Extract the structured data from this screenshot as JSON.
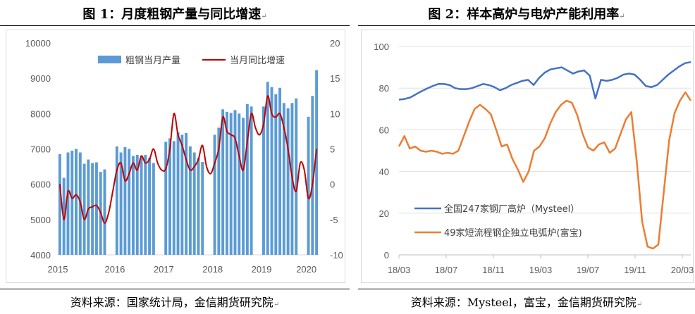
{
  "figure1": {
    "title": "图 1：月度粗钢产量与同比增速",
    "source": "资料来源：国家统计局，金信期货研究院",
    "chart_data": {
      "type": "bar",
      "ylim": [
        4000,
        10000
      ],
      "y2lim": [
        -10,
        20
      ],
      "yticks": [
        "10000",
        "9000",
        "8000",
        "7000",
        "6000",
        "5000",
        "4000"
      ],
      "y2ticks": [
        "20",
        "15",
        "10",
        "5",
        "0",
        "-5",
        "-10"
      ],
      "xticks": [
        "2015",
        "2016",
        "2017",
        "2018",
        "2019",
        "2020"
      ],
      "legend_position": "top",
      "series": [
        {
          "name": "粗钢当月产量",
          "kind": "bar",
          "color": "#5B9BD5",
          "values": [
            6850,
            6180,
            6900,
            6950,
            7000,
            6900,
            6580,
            6700,
            6600,
            6620,
            6350,
            6420,
            null,
            null,
            7070,
            6900,
            7050,
            7000,
            6800,
            6830,
            6800,
            6830,
            6750,
            6600,
            null,
            null,
            7200,
            7300,
            7220,
            7480,
            7400,
            7450,
            7070,
            6900,
            6750,
            6630,
            null,
            null,
            7400,
            7600,
            8120,
            8050,
            8020,
            8100,
            8000,
            7880,
            8270,
            8200,
            null,
            null,
            8200,
            8900,
            8750,
            8550,
            8730,
            8300,
            8150,
            8300,
            8430,
            null,
            null,
            7910,
            8500,
            9230
          ]
        },
        {
          "name": "当月同比增速",
          "kind": "line",
          "axis": "right",
          "color": "#C00000",
          "values": [
            0.0,
            -5.0,
            -1.0,
            -2.0,
            -1.5,
            -2.5,
            -5.0,
            -3.5,
            -3.2,
            -3.0,
            -4.0,
            -5.5,
            -4.0,
            -1.0,
            2.0,
            3.0,
            0.5,
            1.5,
            3.0,
            2.0,
            4.0,
            3.0,
            3.5,
            5.0,
            3.0,
            2.0,
            2.2,
            5.0,
            10.0,
            7.0,
            5.5,
            3.5,
            2.0,
            2.5,
            3.5,
            5.5,
            2.5,
            1.5,
            3.0,
            5.0,
            9.5,
            7.5,
            7.0,
            6.5,
            4.0,
            2.0,
            6.0,
            10.0,
            8.0,
            7.0,
            8.5,
            12.5,
            10.0,
            9.5,
            10.0,
            8.0,
            5.0,
            1.0,
            -1.0,
            3.0,
            2.0,
            -2.0,
            0.0,
            5.0
          ]
        }
      ]
    }
  },
  "figure2": {
    "title": "图 2：样本高炉与电炉产能利用率",
    "source": "资料来源：Mysteel，富宝，金信期货研究院",
    "chart_data": {
      "type": "line",
      "ylim": [
        0,
        100
      ],
      "yticks": [
        "100",
        "80",
        "60",
        "40",
        "20",
        "0"
      ],
      "xticks": [
        "18/03",
        "18/07",
        "18/11",
        "19/03",
        "19/07",
        "19/11",
        "20/03"
      ],
      "legend_position": "bottom-left",
      "series": [
        {
          "name": "全国247家钢厂高炉（Mysteel）",
          "color": "#4472C4",
          "values": [
            74.5,
            74.8,
            75.5,
            77.0,
            78.5,
            79.8,
            81.0,
            82.0,
            82.0,
            81.5,
            80.0,
            79.5,
            79.5,
            80.0,
            81.0,
            82.0,
            81.5,
            80.5,
            79.0,
            80.0,
            81.5,
            82.5,
            83.5,
            84.0,
            81.5,
            85.0,
            87.5,
            89.0,
            89.5,
            90.0,
            88.5,
            87.0,
            88.0,
            88.5,
            86.0,
            75.0,
            84.0,
            83.5,
            84.0,
            85.0,
            86.5,
            87.0,
            86.5,
            84.0,
            81.0,
            80.5,
            81.5,
            84.0,
            86.5,
            88.5,
            90.5,
            92.0,
            92.5
          ]
        },
        {
          "name": "49家短流程钢企独立电弧炉(富宝)",
          "color": "#ED7D31",
          "values": [
            52.0,
            57.0,
            51.0,
            52.0,
            50.0,
            49.5,
            50.0,
            49.5,
            48.5,
            49.0,
            48.5,
            50.0,
            57.0,
            64.0,
            70.0,
            72.0,
            70.0,
            67.5,
            60.0,
            52.0,
            53.0,
            46.0,
            41.0,
            35.0,
            40.0,
            50.0,
            52.0,
            56.0,
            63.0,
            68.5,
            72.0,
            74.0,
            73.0,
            67.0,
            58.0,
            51.5,
            50.0,
            53.0,
            54.0,
            49.0,
            51.0,
            58.0,
            65.0,
            68.5,
            45.0,
            16.0,
            4.0,
            3.0,
            5.0,
            30.0,
            55.0,
            68.0,
            74.0,
            78.0,
            74.0
          ]
        }
      ]
    }
  }
}
